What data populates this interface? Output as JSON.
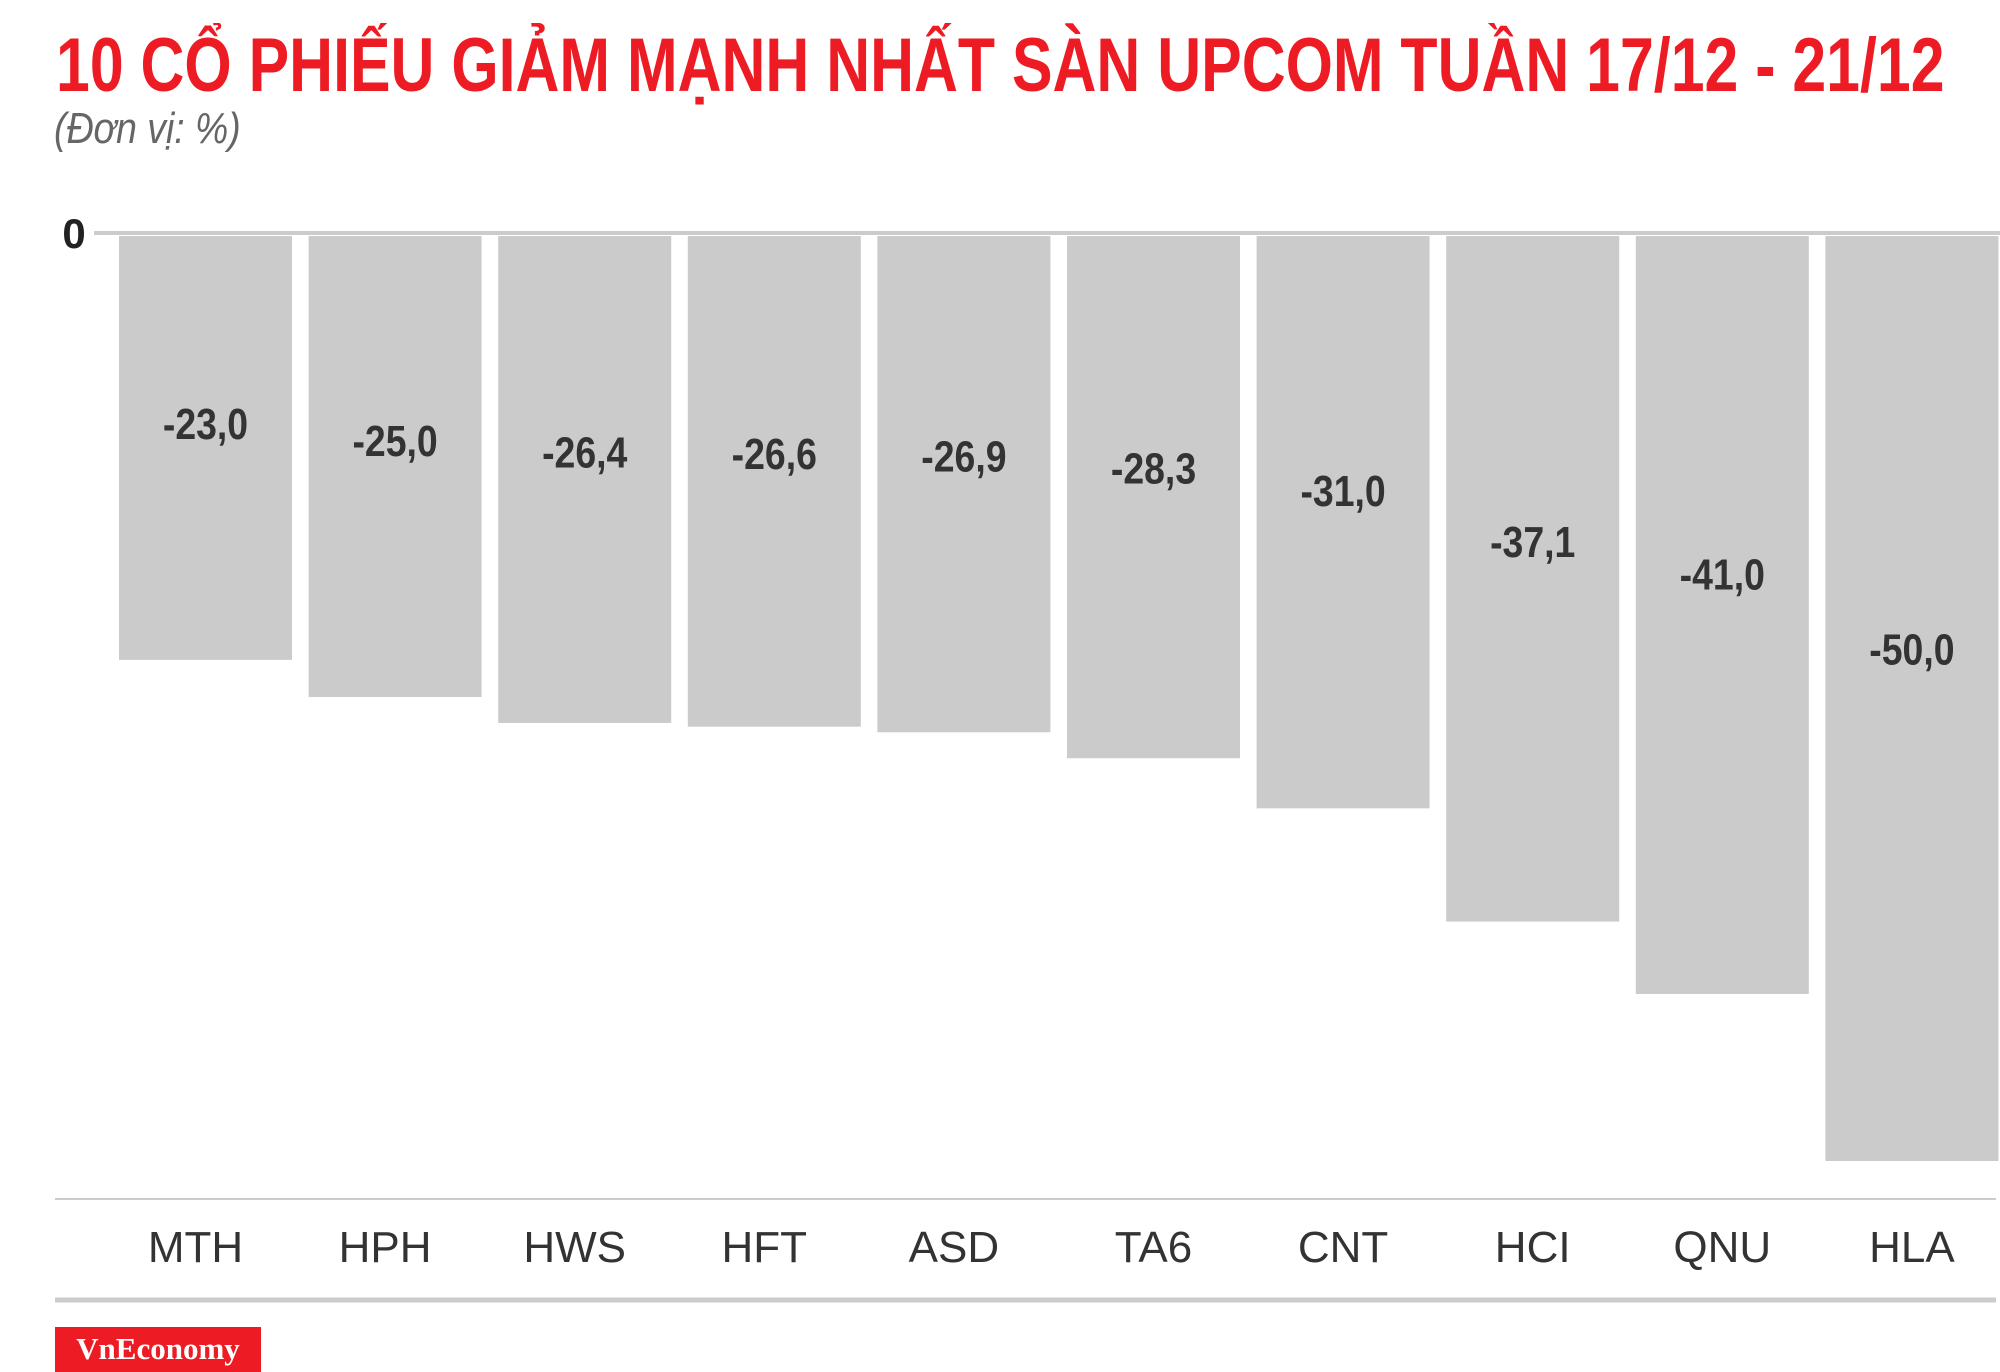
{
  "chart_data": {
    "type": "bar",
    "title": "10 CỔ PHIẾU GIẢM MẠNH NHẤT SÀN UPCOM TUẦN 17/12 - 21/12",
    "subtitle": "(Đơn vị: %)",
    "categories": [
      "MTH",
      "HPH",
      "HWS",
      "HFT",
      "ASD",
      "TA6",
      "CNT",
      "HCI",
      "QNU",
      "HLA"
    ],
    "values": [
      -23.0,
      -25.0,
      -26.4,
      -26.6,
      -26.9,
      -28.3,
      -31.0,
      -37.1,
      -41.0,
      -50.0
    ],
    "data_labels": [
      "-23,0",
      "-25,0",
      "-26,4",
      "-26,6",
      "-26,9",
      "-28,3",
      "-31,0",
      "-37,1",
      "-41,0",
      "-50,0"
    ],
    "y_tick_labels": [
      "0"
    ],
    "ylim": [
      -50,
      0
    ],
    "grid": false,
    "bar_color": "#cccbcc",
    "title_color": "#ed1c24"
  },
  "brand": {
    "logo_text": "VnEconomy",
    "color": "#ed1c24"
  }
}
